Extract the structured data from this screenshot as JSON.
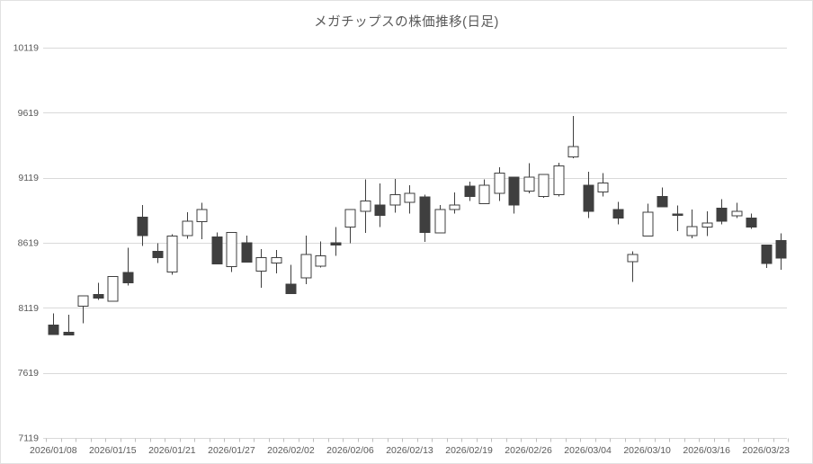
{
  "title": "メガチップスの株価推移(日足)",
  "colors": {
    "background": "#ffffff",
    "frame_border": "#e2e2e2",
    "grid": "#d9d9d9",
    "axis_line": "#d9d9d9",
    "tick": "#bfbfbf",
    "text": "#595959",
    "up_fill": "#ffffff",
    "down_fill": "#3f3f3f",
    "outline": "#3f3f3f"
  },
  "chart_data": {
    "type": "candlestick",
    "title": "メガチップスの株価推移(日足)",
    "grid": "horizontal",
    "legend": "none",
    "y_axis": {
      "min": 7119,
      "max": 10119,
      "ticks": [
        10119,
        9619,
        9119,
        8619,
        8119,
        7619,
        7119
      ]
    },
    "x_axis": {
      "labels": [
        "2026/01/08",
        "2026/01/15",
        "2026/01/21",
        "2026/01/27",
        "2026/02/02",
        "2026/02/06",
        "2026/02/13",
        "2026/02/19",
        "2026/02/26",
        "2026/03/04",
        "2026/03/10",
        "2026/03/16",
        "2026/03/23"
      ],
      "label_every_n_candles": 4
    },
    "candles": [
      {
        "date": "2026/01/08",
        "open": 7985,
        "high": 8075,
        "low": 7915,
        "close": 7915
      },
      {
        "date": "2026/01/09",
        "open": 7930,
        "high": 8065,
        "low": 7910,
        "close": 7910
      },
      {
        "date": "2026/01/13",
        "open": 8130,
        "high": 8210,
        "low": 8000,
        "close": 8210
      },
      {
        "date": "2026/01/14",
        "open": 8220,
        "high": 8310,
        "low": 8180,
        "close": 8195
      },
      {
        "date": "2026/01/15",
        "open": 8170,
        "high": 8360,
        "low": 8170,
        "close": 8360
      },
      {
        "date": "2026/01/16",
        "open": 8390,
        "high": 8580,
        "low": 8290,
        "close": 8310
      },
      {
        "date": "2026/01/19",
        "open": 8815,
        "high": 8910,
        "low": 8595,
        "close": 8675
      },
      {
        "date": "2026/01/20",
        "open": 8555,
        "high": 8615,
        "low": 8465,
        "close": 8505
      },
      {
        "date": "2026/01/21",
        "open": 8395,
        "high": 8685,
        "low": 8375,
        "close": 8670
      },
      {
        "date": "2026/01/22",
        "open": 8675,
        "high": 8855,
        "low": 8650,
        "close": 8785
      },
      {
        "date": "2026/01/23",
        "open": 8780,
        "high": 8925,
        "low": 8645,
        "close": 8875
      },
      {
        "date": "2026/01/26",
        "open": 8665,
        "high": 8700,
        "low": 8455,
        "close": 8455
      },
      {
        "date": "2026/01/27",
        "open": 8435,
        "high": 8700,
        "low": 8395,
        "close": 8700
      },
      {
        "date": "2026/01/28",
        "open": 8620,
        "high": 8675,
        "low": 8470,
        "close": 8470
      },
      {
        "date": "2026/01/29",
        "open": 8400,
        "high": 8570,
        "low": 8275,
        "close": 8505
      },
      {
        "date": "2026/01/30",
        "open": 8465,
        "high": 8565,
        "low": 8385,
        "close": 8505
      },
      {
        "date": "2026/02/02",
        "open": 8300,
        "high": 8450,
        "low": 8230,
        "close": 8230
      },
      {
        "date": "2026/02/03",
        "open": 8350,
        "high": 8675,
        "low": 8300,
        "close": 8530
      },
      {
        "date": "2026/02/04",
        "open": 8440,
        "high": 8630,
        "low": 8430,
        "close": 8520
      },
      {
        "date": "2026/02/05",
        "open": 8620,
        "high": 8740,
        "low": 8520,
        "close": 8600
      },
      {
        "date": "2026/02/06",
        "open": 8740,
        "high": 8875,
        "low": 8615,
        "close": 8875
      },
      {
        "date": "2026/02/09",
        "open": 8860,
        "high": 9105,
        "low": 8695,
        "close": 8940
      },
      {
        "date": "2026/02/10",
        "open": 8910,
        "high": 9075,
        "low": 8740,
        "close": 8830
      },
      {
        "date": "2026/02/12",
        "open": 8910,
        "high": 9110,
        "low": 8850,
        "close": 8990
      },
      {
        "date": "2026/02/13",
        "open": 8930,
        "high": 9060,
        "low": 8845,
        "close": 9000
      },
      {
        "date": "2026/02/16",
        "open": 8970,
        "high": 8990,
        "low": 8625,
        "close": 8700
      },
      {
        "date": "2026/02/17",
        "open": 8695,
        "high": 8910,
        "low": 8695,
        "close": 8875
      },
      {
        "date": "2026/02/18",
        "open": 8875,
        "high": 9005,
        "low": 8845,
        "close": 8910
      },
      {
        "date": "2026/02/19",
        "open": 9055,
        "high": 9090,
        "low": 8940,
        "close": 8975
      },
      {
        "date": "2026/02/20",
        "open": 8920,
        "high": 9105,
        "low": 8920,
        "close": 9060
      },
      {
        "date": "2026/02/24",
        "open": 9000,
        "high": 9200,
        "low": 8940,
        "close": 9155
      },
      {
        "date": "2026/02/25",
        "open": 9125,
        "high": 9125,
        "low": 8845,
        "close": 8910
      },
      {
        "date": "2026/02/26",
        "open": 9015,
        "high": 9230,
        "low": 9000,
        "close": 9125
      },
      {
        "date": "2026/02/27",
        "open": 8975,
        "high": 9145,
        "low": 8965,
        "close": 9145
      },
      {
        "date": "2026/03/02",
        "open": 8990,
        "high": 9235,
        "low": 8975,
        "close": 9210
      },
      {
        "date": "2026/03/03",
        "open": 9280,
        "high": 9595,
        "low": 9270,
        "close": 9360
      },
      {
        "date": "2026/03/04",
        "open": 9060,
        "high": 9165,
        "low": 8810,
        "close": 8860
      },
      {
        "date": "2026/03/05",
        "open": 9010,
        "high": 9155,
        "low": 8975,
        "close": 9080
      },
      {
        "date": "2026/03/06",
        "open": 8875,
        "high": 8935,
        "low": 8760,
        "close": 8810
      },
      {
        "date": "2026/03/09",
        "open": 8475,
        "high": 8555,
        "low": 8320,
        "close": 8530
      },
      {
        "date": "2026/03/10",
        "open": 8670,
        "high": 8920,
        "low": 8670,
        "close": 8855
      },
      {
        "date": "2026/03/11",
        "open": 8975,
        "high": 9045,
        "low": 8895,
        "close": 8895
      },
      {
        "date": "2026/03/12",
        "open": 8840,
        "high": 8905,
        "low": 8710,
        "close": 8835
      },
      {
        "date": "2026/03/13",
        "open": 8675,
        "high": 8875,
        "low": 8655,
        "close": 8745
      },
      {
        "date": "2026/03/16",
        "open": 8740,
        "high": 8860,
        "low": 8670,
        "close": 8770
      },
      {
        "date": "2026/03/17",
        "open": 8885,
        "high": 8955,
        "low": 8760,
        "close": 8785
      },
      {
        "date": "2026/03/18",
        "open": 8825,
        "high": 8925,
        "low": 8810,
        "close": 8860
      },
      {
        "date": "2026/03/19",
        "open": 8810,
        "high": 8845,
        "low": 8725,
        "close": 8740
      },
      {
        "date": "2026/03/23",
        "open": 8600,
        "high": 8600,
        "low": 8425,
        "close": 8460
      },
      {
        "date": "2026/03/24",
        "open": 8635,
        "high": 8690,
        "low": 8410,
        "close": 8500
      }
    ]
  }
}
